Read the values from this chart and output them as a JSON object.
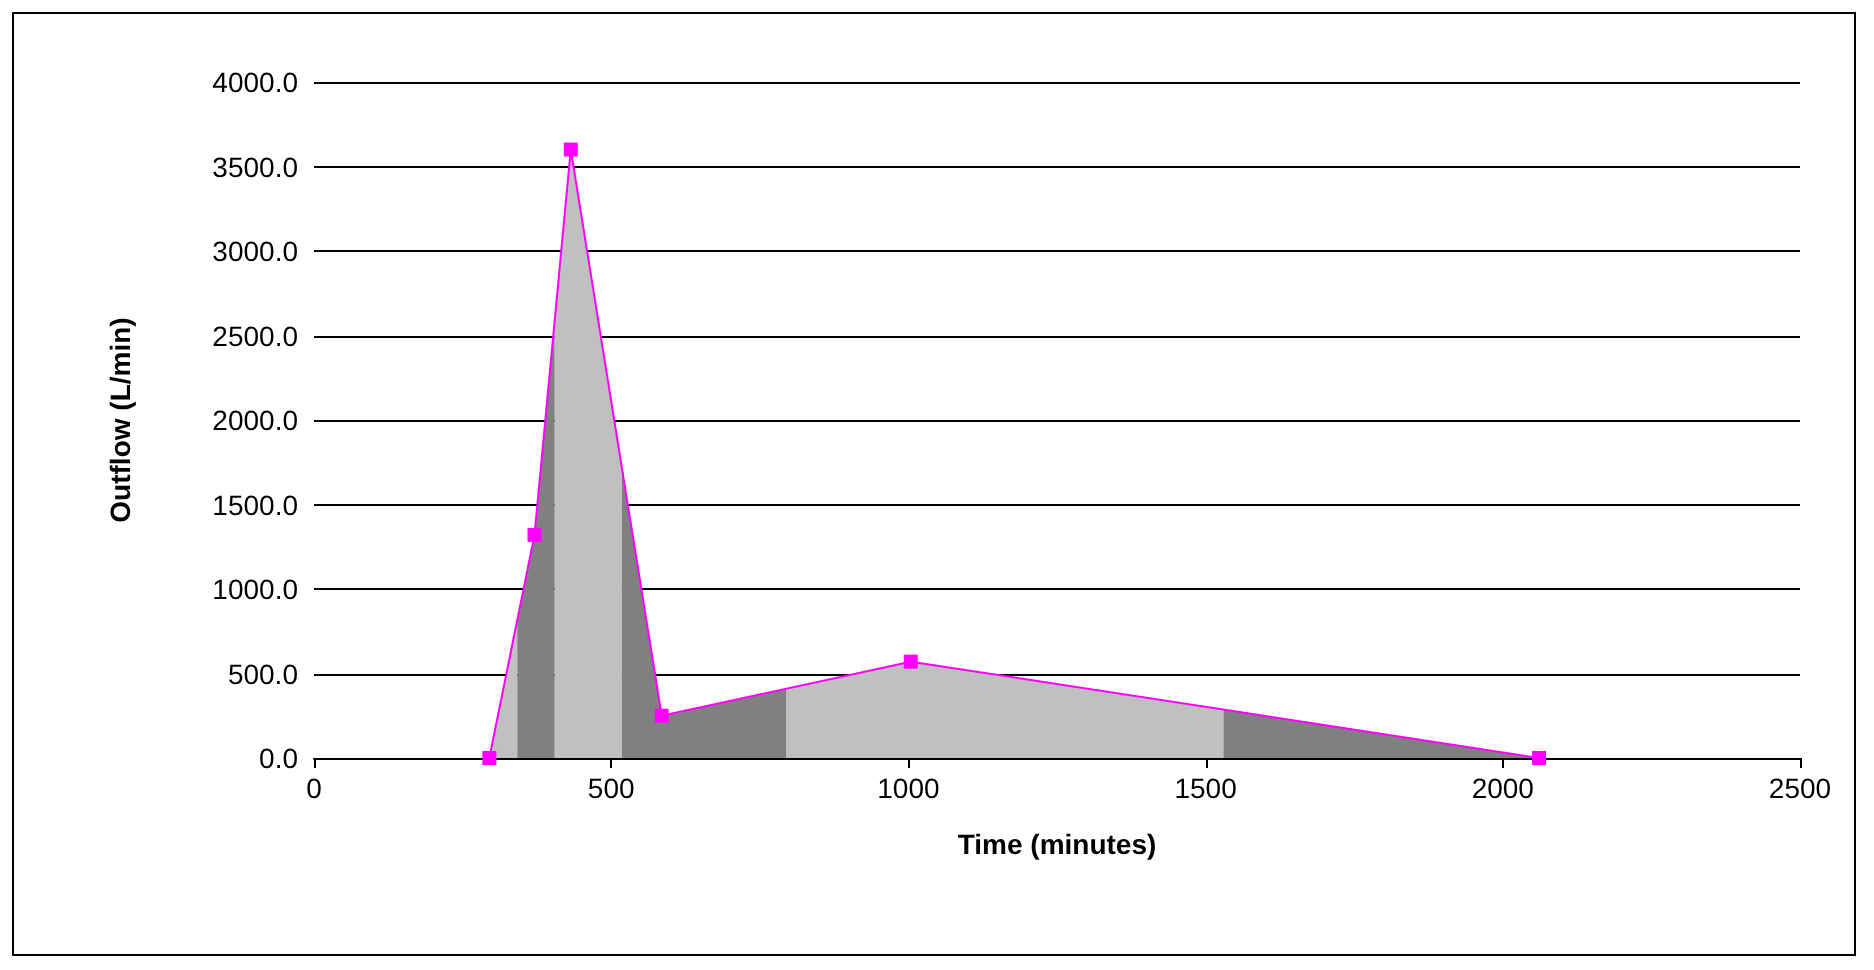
{
  "chart_data": {
    "type": "area",
    "xlabel": "Time (minutes)",
    "ylabel": "Outflow (L/min)",
    "xlim": [
      0,
      2500
    ],
    "xticks": [
      0,
      500,
      1000,
      1500,
      2000,
      2500
    ],
    "ylim": [
      0,
      4000
    ],
    "yticks": [
      {
        "value": 0,
        "label": "0.0"
      },
      {
        "value": 500,
        "label": "500.0"
      },
      {
        "value": 1000,
        "label": "1000.0"
      },
      {
        "value": 1500,
        "label": "1500.0"
      },
      {
        "value": 2000,
        "label": "2000.0"
      },
      {
        "value": 2500,
        "label": "2500.0"
      },
      {
        "value": 3000,
        "label": "3000.0"
      },
      {
        "value": 3500,
        "label": "3500.0"
      },
      {
        "value": 4000,
        "label": "4000.0"
      }
    ],
    "grid": "y",
    "series": [
      {
        "color": "#c0c0c0",
        "x": [
          295,
          342
        ],
        "values": [
          0,
          820
        ],
        "marker": "none"
      },
      {
        "color": "#808080",
        "x": [
          342,
          371,
          405
        ],
        "values": [
          820,
          1320,
          2590
        ],
        "marker": "none"
      },
      {
        "color": "#c0c0c0",
        "x": [
          405,
          432,
          518
        ],
        "values": [
          2590,
          3600,
          1720
        ],
        "marker": "none"
      },
      {
        "color": "#808080",
        "x": [
          518,
          585,
          795
        ],
        "values": [
          1720,
          250,
          410
        ],
        "marker": "none"
      },
      {
        "color": "#c0c0c0",
        "x": [
          795,
          1004,
          1530
        ],
        "values": [
          410,
          570,
          290
        ],
        "marker": "none"
      },
      {
        "color": "#808080",
        "x": [
          1530,
          2061
        ],
        "values": [
          290,
          0
        ],
        "marker": "none"
      },
      {
        "type": "line",
        "color": "#ff00ff",
        "x": [
          295,
          371,
          432,
          585,
          1004,
          2061
        ],
        "values": [
          0,
          1320,
          3600,
          250,
          570,
          0
        ],
        "marker": "square"
      }
    ]
  }
}
